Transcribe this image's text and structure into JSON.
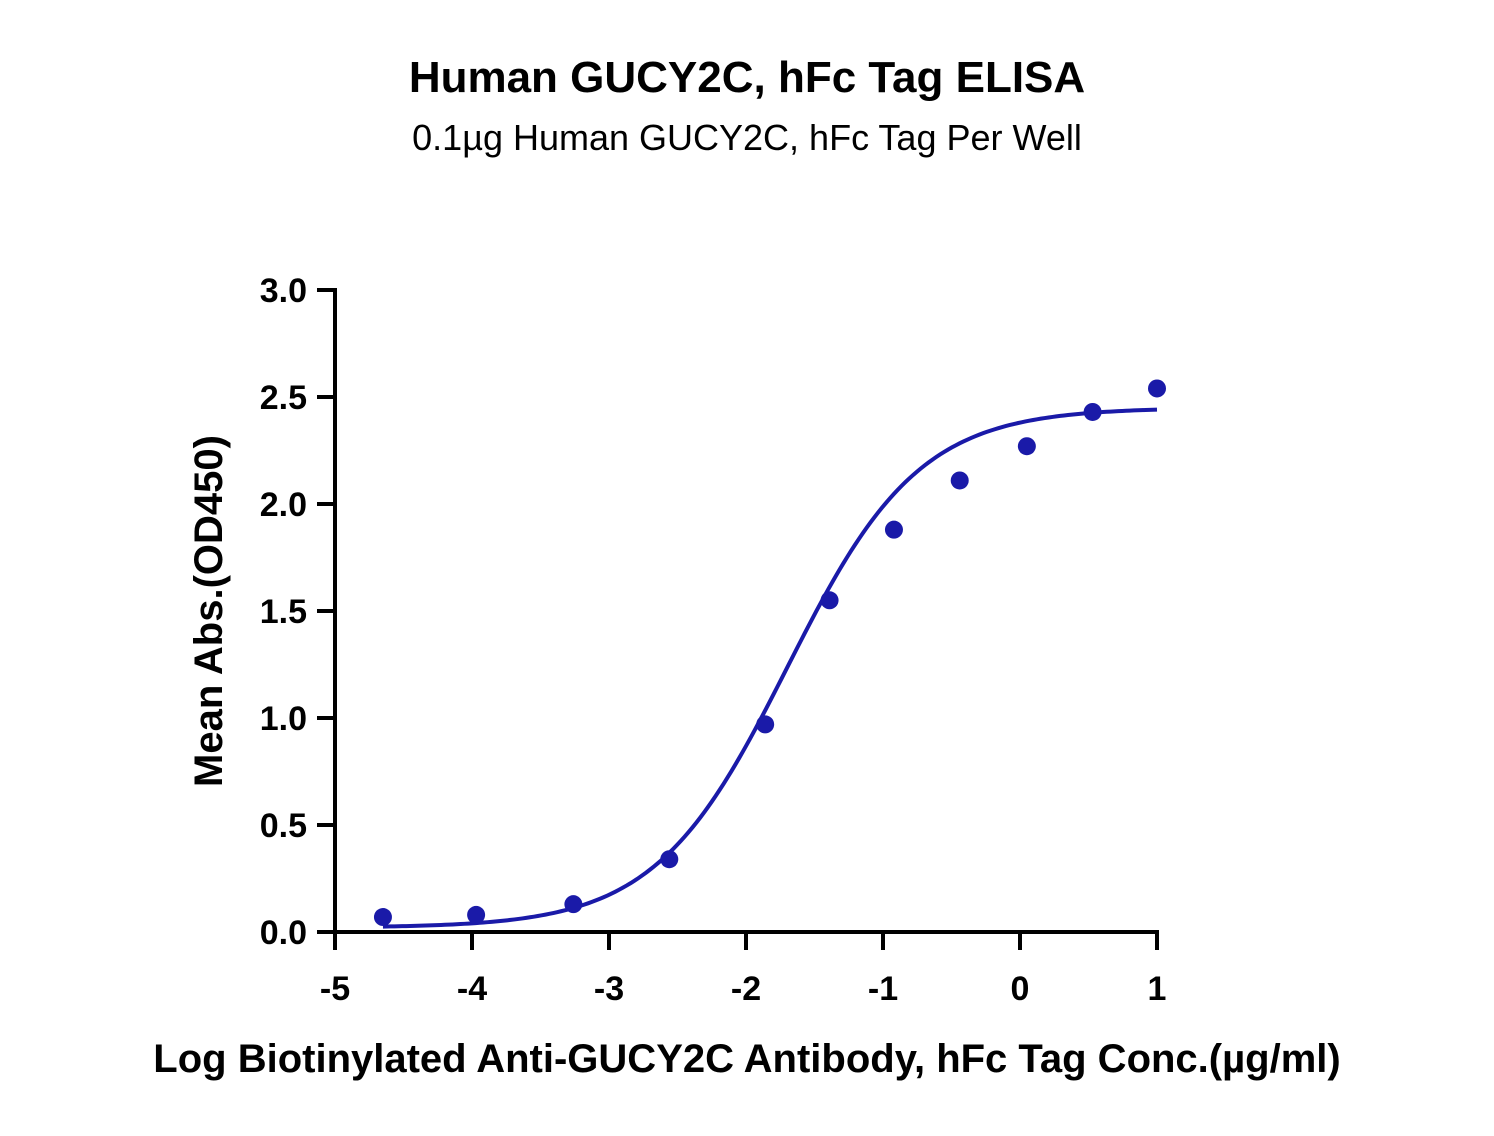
{
  "chart_data": {
    "type": "scatter",
    "title": "Human GUCY2C, hFc Tag ELISA",
    "subtitle": "0.1µg Human GUCY2C, hFc Tag Per Well",
    "xlabel": "Log Biotinylated Anti-GUCY2C Antibody, hFc Tag Conc.(µg/ml)",
    "ylabel": "Mean Abs.(OD450)",
    "xlim": [
      -5,
      1
    ],
    "ylim": [
      0,
      3.0
    ],
    "x_ticks": [
      -5,
      -4,
      -3,
      -2,
      -1,
      0,
      1
    ],
    "x_tick_labels": [
      "-5",
      "-4",
      "-3",
      "-2",
      "-1",
      "0",
      "1"
    ],
    "y_ticks": [
      0,
      0.5,
      1.0,
      1.5,
      2.0,
      2.5,
      3.0
    ],
    "y_tick_labels": [
      "0.0",
      "0.5",
      "1.0",
      "1.5",
      "2.0",
      "2.5",
      "3.0"
    ],
    "grid": false,
    "legend": "none",
    "color": "#1a1aa8",
    "series": [
      {
        "points": [
          {
            "x": -4.65,
            "y": 0.07
          },
          {
            "x": -3.97,
            "y": 0.08
          },
          {
            "x": -3.26,
            "y": 0.13
          },
          {
            "x": -2.56,
            "y": 0.34
          },
          {
            "x": -1.86,
            "y": 0.97
          },
          {
            "x": -1.39,
            "y": 1.55
          },
          {
            "x": -0.92,
            "y": 1.88
          },
          {
            "x": -0.44,
            "y": 2.11
          },
          {
            "x": 0.05,
            "y": 2.27
          },
          {
            "x": 0.53,
            "y": 2.43
          },
          {
            "x": 1.0,
            "y": 2.54
          }
        ],
        "fit": {
          "model": "4PL",
          "bottom": 0.02,
          "top": 2.45,
          "logEC50": -1.7,
          "hill": 0.9,
          "x_range": [
            -4.65,
            1.0
          ]
        }
      }
    ]
  }
}
